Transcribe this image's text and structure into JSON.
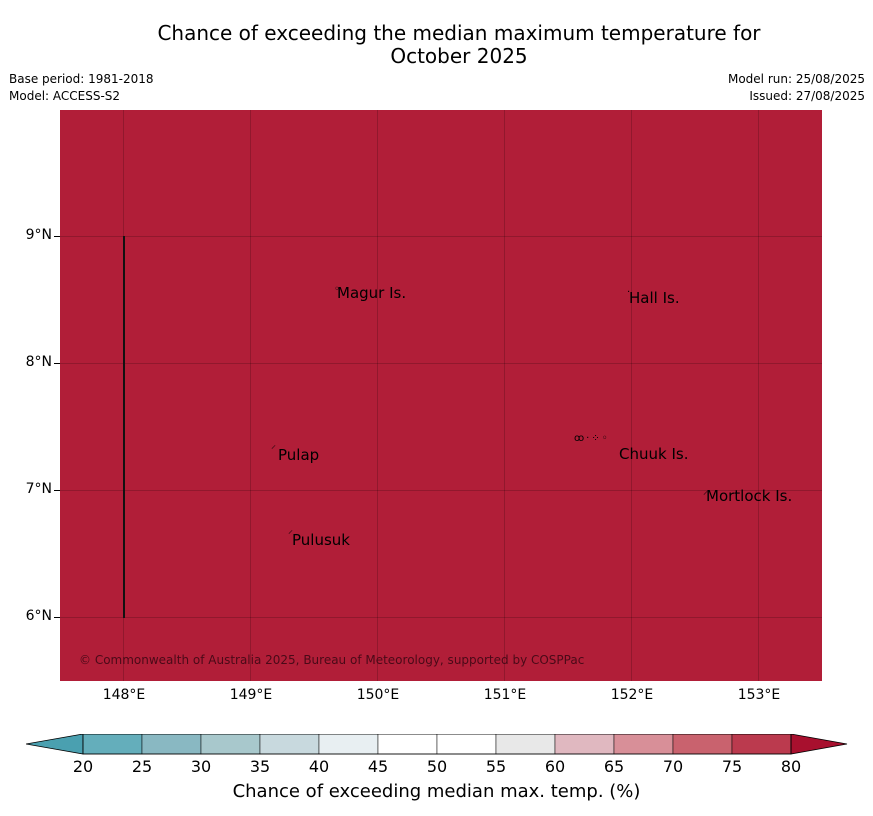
{
  "title_line1": "Chance of exceeding the median maximum temperature for",
  "title_line2": "October 2025",
  "base_period": "Base period: 1981-2018",
  "model": "Model: ACCESS-S2",
  "model_run": "Model run: 25/08/2025",
  "issued": "Issued: 27/08/2025",
  "copyright": "© Commonwealth of Australia 2025, Bureau of Meteorology, supported by COSPPac",
  "map_fill_color": "#b11e38",
  "islands": [
    {
      "name": "Magur Is."
    },
    {
      "name": "Hall Is."
    },
    {
      "name": "Pulap"
    },
    {
      "name": "Chuuk Is."
    },
    {
      "name": "Mortlock Is."
    },
    {
      "name": "Pulusuk"
    }
  ],
  "lat_ticks": [
    "9°N",
    "8°N",
    "7°N",
    "6°N"
  ],
  "lon_ticks": [
    "148°E",
    "149°E",
    "150°E",
    "151°E",
    "152°E",
    "153°E"
  ],
  "colorbar": {
    "label": "Chance of exceeding median max. temp. (%)",
    "ticks": [
      "20",
      "25",
      "30",
      "35",
      "40",
      "45",
      "50",
      "55",
      "60",
      "65",
      "70",
      "75",
      "80"
    ],
    "low_extend_color": "#4aa0b0",
    "high_extend_color": "#a8102e",
    "colors": [
      "#64aebb",
      "#89b8c2",
      "#a8c8cc",
      "#c8d9de",
      "#e8eff2",
      "#ffffff",
      "#ffffff",
      "#e8e8e8",
      "#e0b8c0",
      "#d88f98",
      "#c9626e",
      "#bb3a4e"
    ]
  }
}
